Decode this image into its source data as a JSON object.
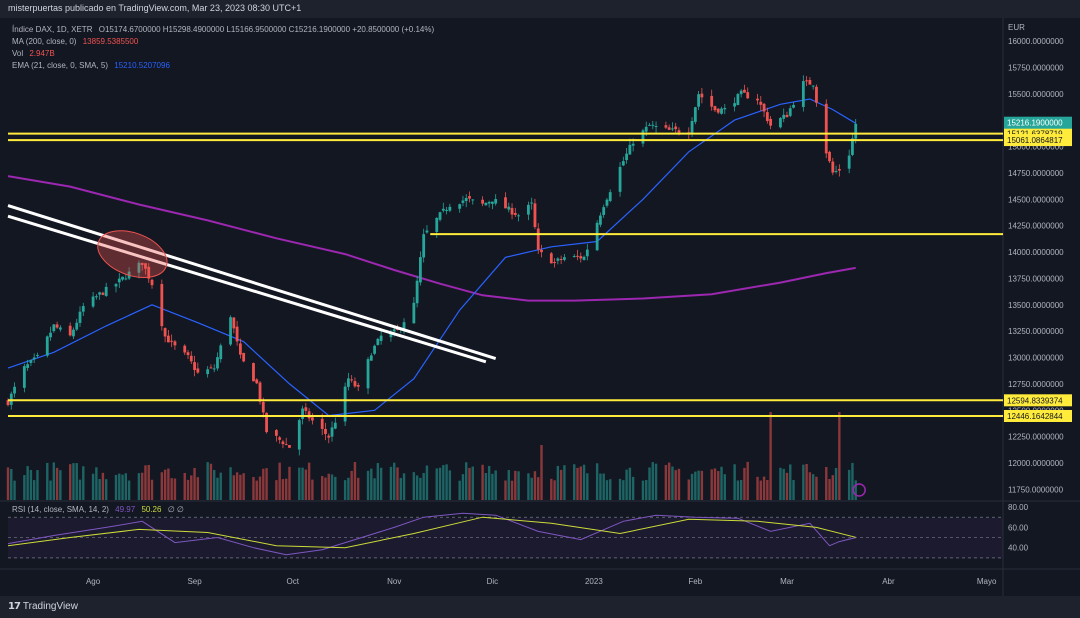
{
  "header": {
    "publisher": "misterpuertas publicado en TradingView.com, Mar 23, 2023 08:30 UTC+1"
  },
  "legend": {
    "main": "Índice DAX, 1D, XETR",
    "ohlc": "O15174.6700000 H15298.4900000 L15166.9500000 C15216.1900000 +20.8500000 (+0.14%)",
    "ma_label": "MA (200, close, 0)",
    "ma_value": "13859.5385500",
    "vol_label": "Vol",
    "vol_value": "2.947B",
    "ema_label": "EMA (21, close, 0, SMA, 5)",
    "ema_value": "15210.5207096",
    "rsi_label": "RSI (14, close, SMA, 14, 2)",
    "rsi_value": "49.97",
    "rsi_ma_value": "50.26",
    "rsi_extra": "∅ ∅"
  },
  "footer": {
    "brand": "TradingView"
  },
  "colors": {
    "up": "#26a69a",
    "down": "#ef5350",
    "level": "#ffeb3b",
    "ma": "#9c27b0",
    "ema": "#2962ff",
    "rsi": "#7e57c2",
    "rsi_ma": "#cddc39",
    "price_tag": "#26a69a"
  },
  "chart_data": {
    "type": "candlestick",
    "currency": "EUR",
    "y_ticks": [
      "16000.0000000",
      "15750.0000000",
      "15500.0000000",
      "15250.0000000",
      "15000.0000000",
      "14750.0000000",
      "14500.0000000",
      "14250.0000000",
      "14000.0000000",
      "13750.0000000",
      "13500.0000000",
      "13250.0000000",
      "13000.0000000",
      "12750.0000000",
      "12500.0000000",
      "12250.0000000",
      "12000.0000000",
      "11750.0000000"
    ],
    "y_range": [
      11650,
      16180
    ],
    "x_labels": [
      {
        "label": "Ago",
        "date": "2022-08-01"
      },
      {
        "label": "Sep",
        "date": "2022-09-01"
      },
      {
        "label": "Oct",
        "date": "2022-10-01"
      },
      {
        "label": "Nov",
        "date": "2022-11-01"
      },
      {
        "label": "Dic",
        "date": "2022-12-01"
      },
      {
        "label": "2023",
        "date": "2023-01-01"
      },
      {
        "label": "Feb",
        "date": "2023-02-01"
      },
      {
        "label": "Mar",
        "date": "2023-03-01"
      },
      {
        "label": "Abr",
        "date": "2023-04-01"
      },
      {
        "label": "Mayo",
        "date": "2023-05-01"
      }
    ],
    "x_range": [
      "2022-07-06",
      "2023-05-06"
    ],
    "price_levels": [
      {
        "price": 15121.6378719,
        "label": "15121.6378719"
      },
      {
        "price": 15061.0864817,
        "label": "15061.0864817"
      },
      {
        "price": 14170,
        "label": ""
      },
      {
        "price": 12594.8339374,
        "label": "12594.8339374"
      },
      {
        "price": 12446.1642844,
        "label": "12446.1642844"
      }
    ],
    "last_price": {
      "price": 15216.19,
      "label": "15216.1900000"
    },
    "close_path": [
      [
        "2022-07-06",
        12580
      ],
      [
        "2022-07-11",
        12900
      ],
      [
        "2022-07-15",
        13000
      ],
      [
        "2022-07-20",
        13300
      ],
      [
        "2022-07-25",
        13200
      ],
      [
        "2022-07-29",
        13480
      ],
      [
        "2022-08-03",
        13600
      ],
      [
        "2022-08-08",
        13700
      ],
      [
        "2022-08-12",
        13800
      ],
      [
        "2022-08-16",
        13900
      ],
      [
        "2022-08-19",
        13700
      ],
      [
        "2022-08-23",
        13200
      ],
      [
        "2022-08-26",
        13100
      ],
      [
        "2022-08-30",
        13000
      ],
      [
        "2022-09-02",
        12850
      ],
      [
        "2022-09-07",
        12900
      ],
      [
        "2022-09-12",
        13400
      ],
      [
        "2022-09-15",
        13000
      ],
      [
        "2022-09-20",
        12750
      ],
      [
        "2022-09-23",
        12300
      ],
      [
        "2022-09-28",
        12200
      ],
      [
        "2022-09-30",
        12150
      ],
      [
        "2022-10-04",
        12500
      ],
      [
        "2022-10-07",
        12400
      ],
      [
        "2022-10-12",
        12250
      ],
      [
        "2022-10-14",
        12400
      ],
      [
        "2022-10-18",
        12800
      ],
      [
        "2022-10-21",
        12700
      ],
      [
        "2022-10-25",
        13050
      ],
      [
        "2022-10-28",
        13200
      ],
      [
        "2022-11-02",
        13250
      ],
      [
        "2022-11-07",
        13500
      ],
      [
        "2022-11-10",
        14150
      ],
      [
        "2022-11-15",
        14350
      ],
      [
        "2022-11-18",
        14450
      ],
      [
        "2022-11-23",
        14500
      ],
      [
        "2022-11-28",
        14450
      ],
      [
        "2022-12-01",
        14500
      ],
      [
        "2022-12-06",
        14400
      ],
      [
        "2022-12-09",
        14350
      ],
      [
        "2022-12-13",
        14450
      ],
      [
        "2022-12-15",
        14000
      ],
      [
        "2022-12-20",
        13900
      ],
      [
        "2022-12-23",
        13950
      ],
      [
        "2022-12-29",
        13950
      ],
      [
        "2023-01-04",
        14450
      ],
      [
        "2023-01-09",
        14800
      ],
      [
        "2023-01-13",
        15050
      ],
      [
        "2023-01-18",
        15200
      ],
      [
        "2023-01-24",
        15150
      ],
      [
        "2023-01-30",
        15150
      ],
      [
        "2023-02-02",
        15500
      ],
      [
        "2023-02-07",
        15350
      ],
      [
        "2023-02-10",
        15350
      ],
      [
        "2023-02-15",
        15500
      ],
      [
        "2023-02-20",
        15450
      ],
      [
        "2023-02-24",
        15200
      ],
      [
        "2023-03-01",
        15300
      ],
      [
        "2023-03-06",
        15600
      ],
      [
        "2023-03-09",
        15600
      ],
      [
        "2023-03-13",
        14950
      ],
      [
        "2023-03-15",
        14750
      ],
      [
        "2023-03-17",
        14780
      ],
      [
        "2023-03-20",
        14930
      ],
      [
        "2023-03-22",
        15216
      ]
    ],
    "ma200": [
      [
        "2022-07-06",
        14720
      ],
      [
        "2022-07-25",
        14620
      ],
      [
        "2022-08-15",
        14450
      ],
      [
        "2022-09-05",
        14300
      ],
      [
        "2022-09-26",
        14130
      ],
      [
        "2022-10-17",
        13980
      ],
      [
        "2022-11-01",
        13830
      ],
      [
        "2022-11-15",
        13700
      ],
      [
        "2022-11-28",
        13590
      ],
      [
        "2022-12-12",
        13540
      ],
      [
        "2022-12-26",
        13540
      ],
      [
        "2023-01-16",
        13560
      ],
      [
        "2023-02-06",
        13600
      ],
      [
        "2023-02-27",
        13710
      ],
      [
        "2023-03-13",
        13800
      ],
      [
        "2023-03-22",
        13850
      ]
    ],
    "ema21": [
      [
        "2022-07-06",
        12900
      ],
      [
        "2022-07-20",
        13050
      ],
      [
        "2022-08-05",
        13300
      ],
      [
        "2022-08-19",
        13500
      ],
      [
        "2022-09-02",
        13330
      ],
      [
        "2022-09-16",
        13150
      ],
      [
        "2022-09-30",
        12750
      ],
      [
        "2022-10-12",
        12450
      ],
      [
        "2022-10-26",
        12500
      ],
      [
        "2022-11-07",
        12800
      ],
      [
        "2022-11-21",
        13450
      ],
      [
        "2022-12-05",
        13950
      ],
      [
        "2022-12-19",
        14050
      ],
      [
        "2023-01-02",
        14100
      ],
      [
        "2023-01-16",
        14500
      ],
      [
        "2023-01-30",
        14950
      ],
      [
        "2023-02-13",
        15250
      ],
      [
        "2023-02-27",
        15400
      ],
      [
        "2023-03-08",
        15450
      ],
      [
        "2023-03-15",
        15350
      ],
      [
        "2023-03-22",
        15220
      ]
    ],
    "trendlines": [
      {
        "p1": [
          "2022-07-06",
          14440
        ],
        "p2": [
          "2022-12-02",
          12990
        ]
      },
      {
        "p1": [
          "2022-07-06",
          14340
        ],
        "p2": [
          "2022-11-29",
          12960
        ]
      }
    ],
    "annotation_ellipse": {
      "center": [
        "2022-08-13",
        13980
      ],
      "rx_days": 11,
      "ry_price": 200
    },
    "volume_spikes": [
      [
        "2022-12-16",
        1.0
      ],
      [
        "2023-02-24",
        1.6
      ],
      [
        "2023-03-17",
        1.6
      ],
      [
        "2023-03-13",
        0.6
      ]
    ],
    "rsi": {
      "y_ticks": [
        "80.00",
        "60.00",
        "40.00"
      ],
      "y_range": [
        20,
        85
      ],
      "bands": [
        70,
        50,
        30
      ],
      "line": [
        [
          "2022-07-06",
          44
        ],
        [
          "2022-07-20",
          52
        ],
        [
          "2022-08-05",
          60
        ],
        [
          "2022-08-16",
          66
        ],
        [
          "2022-08-26",
          45
        ],
        [
          "2022-09-08",
          50
        ],
        [
          "2022-09-19",
          40
        ],
        [
          "2022-09-29",
          33
        ],
        [
          "2022-10-10",
          38
        ],
        [
          "2022-10-20",
          48
        ],
        [
          "2022-11-01",
          60
        ],
        [
          "2022-11-10",
          70
        ],
        [
          "2022-11-22",
          74
        ],
        [
          "2022-12-02",
          72
        ],
        [
          "2022-12-15",
          56
        ],
        [
          "2022-12-28",
          48
        ],
        [
          "2023-01-10",
          66
        ],
        [
          "2023-01-20",
          72
        ],
        [
          "2023-02-01",
          70
        ],
        [
          "2023-02-14",
          69
        ],
        [
          "2023-02-24",
          56
        ],
        [
          "2023-03-08",
          64
        ],
        [
          "2023-03-14",
          42
        ],
        [
          "2023-03-17",
          46
        ],
        [
          "2023-03-22",
          49.97
        ]
      ],
      "ma": [
        [
          "2022-07-06",
          42
        ],
        [
          "2022-07-25",
          50
        ],
        [
          "2022-08-15",
          58
        ],
        [
          "2022-09-05",
          55
        ],
        [
          "2022-09-26",
          42
        ],
        [
          "2022-10-17",
          40
        ],
        [
          "2022-11-07",
          54
        ],
        [
          "2022-11-28",
          70
        ],
        [
          "2022-12-19",
          64
        ],
        [
          "2023-01-09",
          54
        ],
        [
          "2023-01-30",
          68
        ],
        [
          "2023-02-20",
          66
        ],
        [
          "2023-03-10",
          60
        ],
        [
          "2023-03-22",
          50.26
        ]
      ]
    }
  }
}
